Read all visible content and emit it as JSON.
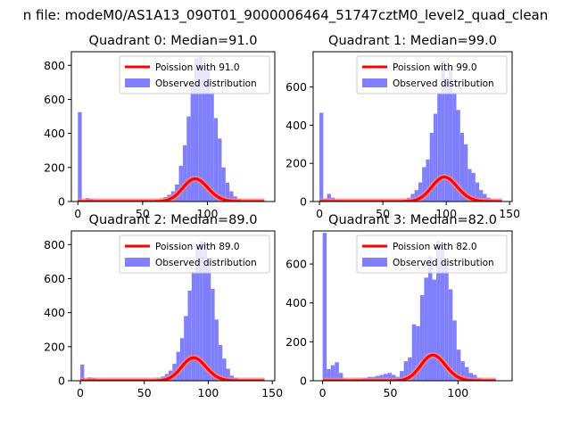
{
  "suptitle": "n file: modeM0/AS1A13_090T01_9000006464_51747cztM0_level2_quad_clean",
  "colors": {
    "bar": "#8080ff",
    "line": "#ff0000",
    "line_band": "#ff8080"
  },
  "chart_data": [
    {
      "type": "bar",
      "title": "Quadrant 0: Median=91.0",
      "xlim": [
        -5,
        152
      ],
      "ylim": [
        0,
        880
      ],
      "xticks": [
        0,
        50,
        100
      ],
      "yticks": [
        0,
        200,
        400,
        600,
        800
      ],
      "legend": {
        "line_label": "Poission with 91.0",
        "bar_label": "Observed distribution",
        "placement": "upper-right"
      },
      "bins": {
        "start": 0,
        "width": 3
      },
      "values": [
        525,
        2,
        20,
        15,
        5,
        2,
        2,
        2,
        0,
        1,
        1,
        2,
        2,
        0,
        2,
        2,
        2,
        1,
        2,
        3,
        8,
        12,
        25,
        40,
        60,
        100,
        210,
        330,
        500,
        690,
        840,
        850,
        790,
        790,
        640,
        490,
        370,
        200,
        110,
        60,
        30,
        15,
        8,
        4,
        2,
        1,
        1
      ],
      "poisson": {
        "mean": 91,
        "scale": 3200,
        "x_range": [
          0,
          144
        ]
      }
    },
    {
      "type": "bar",
      "title": "Quadrant 1: Median=99.0",
      "xlim": [
        -5,
        152
      ],
      "ylim": [
        0,
        785
      ],
      "xticks": [
        0,
        50,
        100,
        150
      ],
      "yticks": [
        0,
        200,
        400,
        600
      ],
      "legend": {
        "line_label": "Poission with 99.0",
        "bar_label": "Observed distribution",
        "placement": "upper-right"
      },
      "bins": {
        "start": 0,
        "width": 3
      },
      "values": [
        465,
        15,
        40,
        20,
        5,
        2,
        1,
        1,
        0,
        1,
        1,
        1,
        2,
        2,
        1,
        1,
        2,
        1,
        2,
        3,
        4,
        6,
        10,
        20,
        40,
        60,
        100,
        180,
        220,
        360,
        460,
        570,
        740,
        650,
        700,
        570,
        480,
        360,
        300,
        170,
        150,
        100,
        60,
        40,
        20,
        10,
        5,
        3
      ],
      "poisson": {
        "mean": 99,
        "scale": 3200,
        "x_range": [
          0,
          144
        ]
      }
    },
    {
      "type": "bar",
      "title": "Quadrant 2: Median=89.0",
      "xlim": [
        -7,
        152
      ],
      "ylim": [
        0,
        880
      ],
      "xticks": [
        0,
        50,
        100,
        150
      ],
      "yticks": [
        0,
        200,
        400,
        600,
        800
      ],
      "legend": {
        "line_label": "Poission with 89.0",
        "bar_label": "Observed distribution",
        "placement": "upper-right"
      },
      "bins": {
        "start": 0,
        "width": 3
      },
      "values": [
        95,
        5,
        20,
        15,
        5,
        2,
        1,
        1,
        0,
        1,
        1,
        1,
        1,
        2,
        2,
        2,
        3,
        2,
        3,
        5,
        12,
        25,
        40,
        60,
        100,
        170,
        250,
        380,
        530,
        640,
        790,
        820,
        810,
        700,
        540,
        360,
        210,
        130,
        70,
        30,
        15,
        8,
        4,
        2,
        1,
        1,
        1
      ],
      "poisson": {
        "mean": 89,
        "scale": 3200,
        "x_range": [
          0,
          144
        ]
      }
    },
    {
      "type": "bar",
      "title": "Quadrant 3: Median=82.0",
      "xlim": [
        -7,
        140
      ],
      "ylim": [
        0,
        770
      ],
      "xticks": [
        0,
        50,
        100
      ],
      "yticks": [
        0,
        200,
        400,
        600
      ],
      "legend": {
        "line_label": "Poission with 82.0",
        "bar_label": "Observed distribution",
        "placement": "upper-right"
      },
      "bins": {
        "start": 0,
        "width": 3
      },
      "values": [
        760,
        60,
        80,
        95,
        40,
        10,
        5,
        8,
        10,
        10,
        15,
        20,
        20,
        25,
        30,
        35,
        40,
        30,
        20,
        50,
        100,
        120,
        290,
        280,
        440,
        530,
        640,
        520,
        720,
        700,
        600,
        470,
        310,
        160,
        100,
        70,
        40,
        30,
        15,
        8,
        4,
        2
      ],
      "poisson": {
        "mean": 82,
        "scale": 3000,
        "x_range": [
          0,
          128
        ]
      }
    }
  ]
}
